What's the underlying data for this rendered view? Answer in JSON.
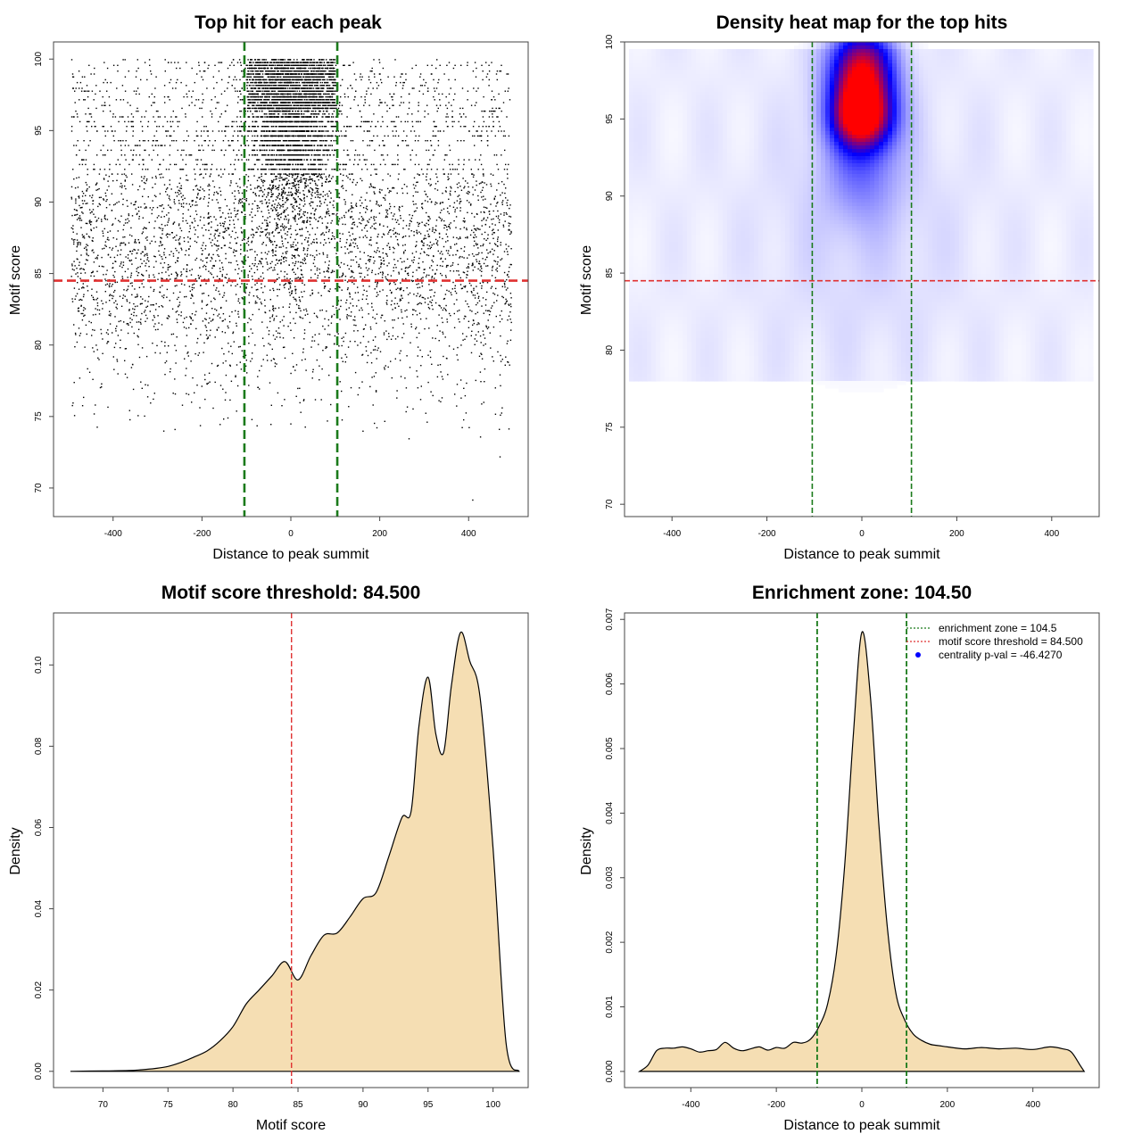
{
  "chart_data": [
    {
      "id": "scatter",
      "type": "scatter",
      "title": "Top hit for each peak",
      "xlabel": "Distance to peak summit",
      "ylabel": "Motif score",
      "xlim": [
        -534,
        534
      ],
      "ylim": [
        68,
        101.2
      ],
      "xticks": [
        "-400",
        "-200",
        "0",
        "200",
        "400"
      ],
      "xtick_values": [
        -400,
        -200,
        0,
        200,
        400
      ],
      "yticks": [
        "70",
        "75",
        "80",
        "85",
        "90",
        "95",
        "100"
      ],
      "ytick_values": [
        70,
        75,
        80,
        85,
        90,
        95,
        100
      ],
      "hline": {
        "value": 84.5,
        "color": "#e03030"
      },
      "vlines": {
        "values": [
          -104.5,
          104.5
        ],
        "color": "#1a7a1a"
      },
      "point_color": "#000000",
      "points_description_note": "",
      "seed": 7
    },
    {
      "id": "heatmap",
      "type": "heatmap",
      "title": "Density heat map for the top hits",
      "xlabel": "Distance to peak summit",
      "ylabel": "Motif score",
      "xlim": [
        -500,
        500
      ],
      "ylim": [
        69.2,
        100
      ],
      "xticks": [
        "-400",
        "-200",
        "0",
        "200",
        "400"
      ],
      "xtick_values": [
        -400,
        -200,
        0,
        200,
        400
      ],
      "yticks": [
        "70",
        "75",
        "80",
        "85",
        "90",
        "95",
        "100"
      ],
      "ytick_values": [
        70,
        75,
        80,
        85,
        90,
        95,
        100
      ],
      "hline": {
        "value": 84.5,
        "color": "#e03030"
      },
      "vlines": {
        "values": [
          -104.5,
          104.5
        ],
        "color": "#1a7a1a"
      },
      "hotspots": [
        {
          "x": 0,
          "y": 97.6,
          "sx": 45,
          "sy": 2.2,
          "w": 1.0
        },
        {
          "x": 0,
          "y": 95.0,
          "sx": 42,
          "sy": 1.3,
          "w": 0.72
        },
        {
          "x": 0,
          "y": 92.0,
          "sx": 55,
          "sy": 2.5,
          "w": 0.22
        },
        {
          "x": 0,
          "y": 88.0,
          "sx": 150,
          "sy": 6.0,
          "w": 0.05
        }
      ],
      "colors": {
        "low": "#ffffff",
        "mid": "#0000ff",
        "high": "#ff0000"
      }
    },
    {
      "id": "score_density",
      "type": "area",
      "title": "Motif score threshold: 84.500",
      "xlabel": "Motif score",
      "ylabel": "Density",
      "xlim": [
        66.2,
        102.7
      ],
      "ylim": [
        -0.004,
        0.1128
      ],
      "xticks": [
        "70",
        "75",
        "80",
        "85",
        "90",
        "95",
        "100"
      ],
      "xtick_values": [
        70,
        75,
        80,
        85,
        90,
        95,
        100
      ],
      "yticks": [
        "0.00",
        "0.02",
        "0.04",
        "0.06",
        "0.08",
        "0.10"
      ],
      "ytick_values": [
        0,
        0.02,
        0.04,
        0.06,
        0.08,
        0.1
      ],
      "x": [
        67.5,
        70,
        72,
        73,
        74,
        75,
        76,
        77,
        78,
        79,
        80,
        81,
        82,
        83,
        84,
        85,
        86,
        87,
        88,
        89,
        90,
        91,
        92,
        93,
        93.7,
        94.3,
        95,
        95.6,
        96.2,
        96.8,
        97.5,
        98.2,
        99,
        100,
        101,
        102
      ],
      "y": [
        0,
        0.0001,
        0.0002,
        0.0004,
        0.0007,
        0.0012,
        0.0022,
        0.0035,
        0.005,
        0.0075,
        0.011,
        0.0165,
        0.02,
        0.0235,
        0.027,
        0.0225,
        0.0285,
        0.0335,
        0.034,
        0.038,
        0.0425,
        0.044,
        0.053,
        0.0625,
        0.064,
        0.085,
        0.097,
        0.083,
        0.0785,
        0.095,
        0.108,
        0.101,
        0.092,
        0.055,
        0.007,
        0
      ],
      "fill": "#f5deb3",
      "vline": {
        "value": 84.5,
        "color": "#e03030"
      }
    },
    {
      "id": "distance_density",
      "type": "area",
      "title": "Enrichment zone: 104.50",
      "xlabel": "Distance to peak summit",
      "ylabel": "Density",
      "xlim": [
        -555,
        555
      ],
      "ylim": [
        -0.00025,
        0.0071
      ],
      "xticks": [
        "-400",
        "-200",
        "0",
        "200",
        "400"
      ],
      "xtick_values": [
        -400,
        -200,
        0,
        200,
        400
      ],
      "yticks": [
        "0.000",
        "0.001",
        "0.002",
        "0.003",
        "0.004",
        "0.005",
        "0.006",
        "0.007"
      ],
      "ytick_values": [
        0,
        0.001,
        0.002,
        0.003,
        0.004,
        0.005,
        0.006,
        0.007
      ],
      "x": [
        -520,
        -500,
        -480,
        -460,
        -440,
        -420,
        -400,
        -380,
        -360,
        -340,
        -320,
        -300,
        -280,
        -260,
        -240,
        -220,
        -200,
        -180,
        -160,
        -140,
        -120,
        -100,
        -80,
        -60,
        -40,
        -20,
        0,
        20,
        40,
        60,
        80,
        100,
        120,
        140,
        160,
        180,
        200,
        240,
        280,
        320,
        360,
        400,
        440,
        470,
        490,
        510,
        520
      ],
      "y": [
        0,
        0.0001,
        0.00032,
        0.00036,
        0.00036,
        0.00038,
        0.00035,
        0.0003,
        0.00032,
        0.00034,
        0.00045,
        0.00036,
        0.00032,
        0.00035,
        0.00038,
        0.00033,
        0.00037,
        0.00036,
        0.00045,
        0.00044,
        0.0005,
        0.0007,
        0.00105,
        0.0018,
        0.0032,
        0.0052,
        0.0068,
        0.0058,
        0.0038,
        0.0022,
        0.0012,
        0.0008,
        0.00058,
        0.00048,
        0.00042,
        0.0004,
        0.00038,
        0.00035,
        0.00037,
        0.00035,
        0.00036,
        0.00034,
        0.00038,
        0.00035,
        0.0003,
        0.0001,
        0
      ],
      "fill": "#f5deb3",
      "vlines": {
        "values": [
          -104.5,
          104.5
        ],
        "color": "#1a7a1a"
      },
      "legend": [
        {
          "label": "enrichment zone = 104.5",
          "kind": "line",
          "color": "#1a7a1a"
        },
        {
          "label": "motif score threshold = 84.500",
          "kind": "line",
          "color": "#e03030"
        },
        {
          "label": "centrality p-val = -46.4270",
          "kind": "point",
          "color": "#0000ff"
        }
      ]
    }
  ]
}
